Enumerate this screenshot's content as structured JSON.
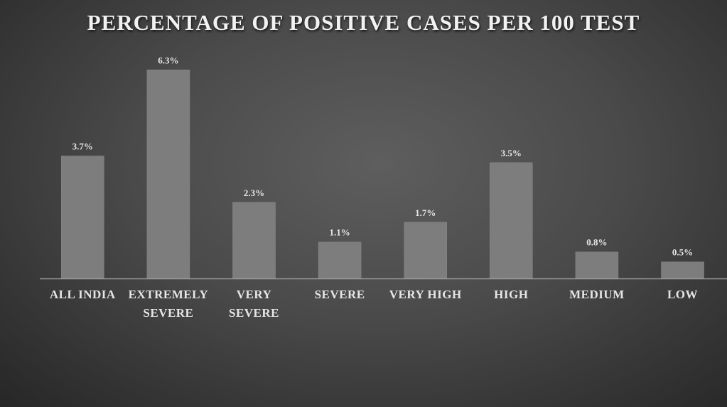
{
  "chart_data": {
    "type": "bar",
    "title": "PERCENTAGE OF POSITIVE CASES PER 100 TEST",
    "categories": [
      [
        "ALL INDIA"
      ],
      [
        "EXTREMELY",
        "SEVERE"
      ],
      [
        "VERY",
        "SEVERE"
      ],
      [
        "SEVERE"
      ],
      [
        "VERY HIGH"
      ],
      [
        "HIGH"
      ],
      [
        "MEDIUM"
      ],
      [
        "LOW"
      ]
    ],
    "values": [
      3.7,
      6.3,
      2.3,
      1.1,
      1.7,
      3.5,
      0.8,
      0.5
    ],
    "data_labels": [
      "3.7%",
      "6.3%",
      "2.3%",
      "1.1%",
      "1.7%",
      "3.5%",
      "0.8%",
      "0.5%"
    ],
    "xlabel": "",
    "ylabel": "",
    "ylim": [
      0,
      6.5
    ],
    "grid": false,
    "legend": "none",
    "bar_color": "#7d7d7d"
  }
}
